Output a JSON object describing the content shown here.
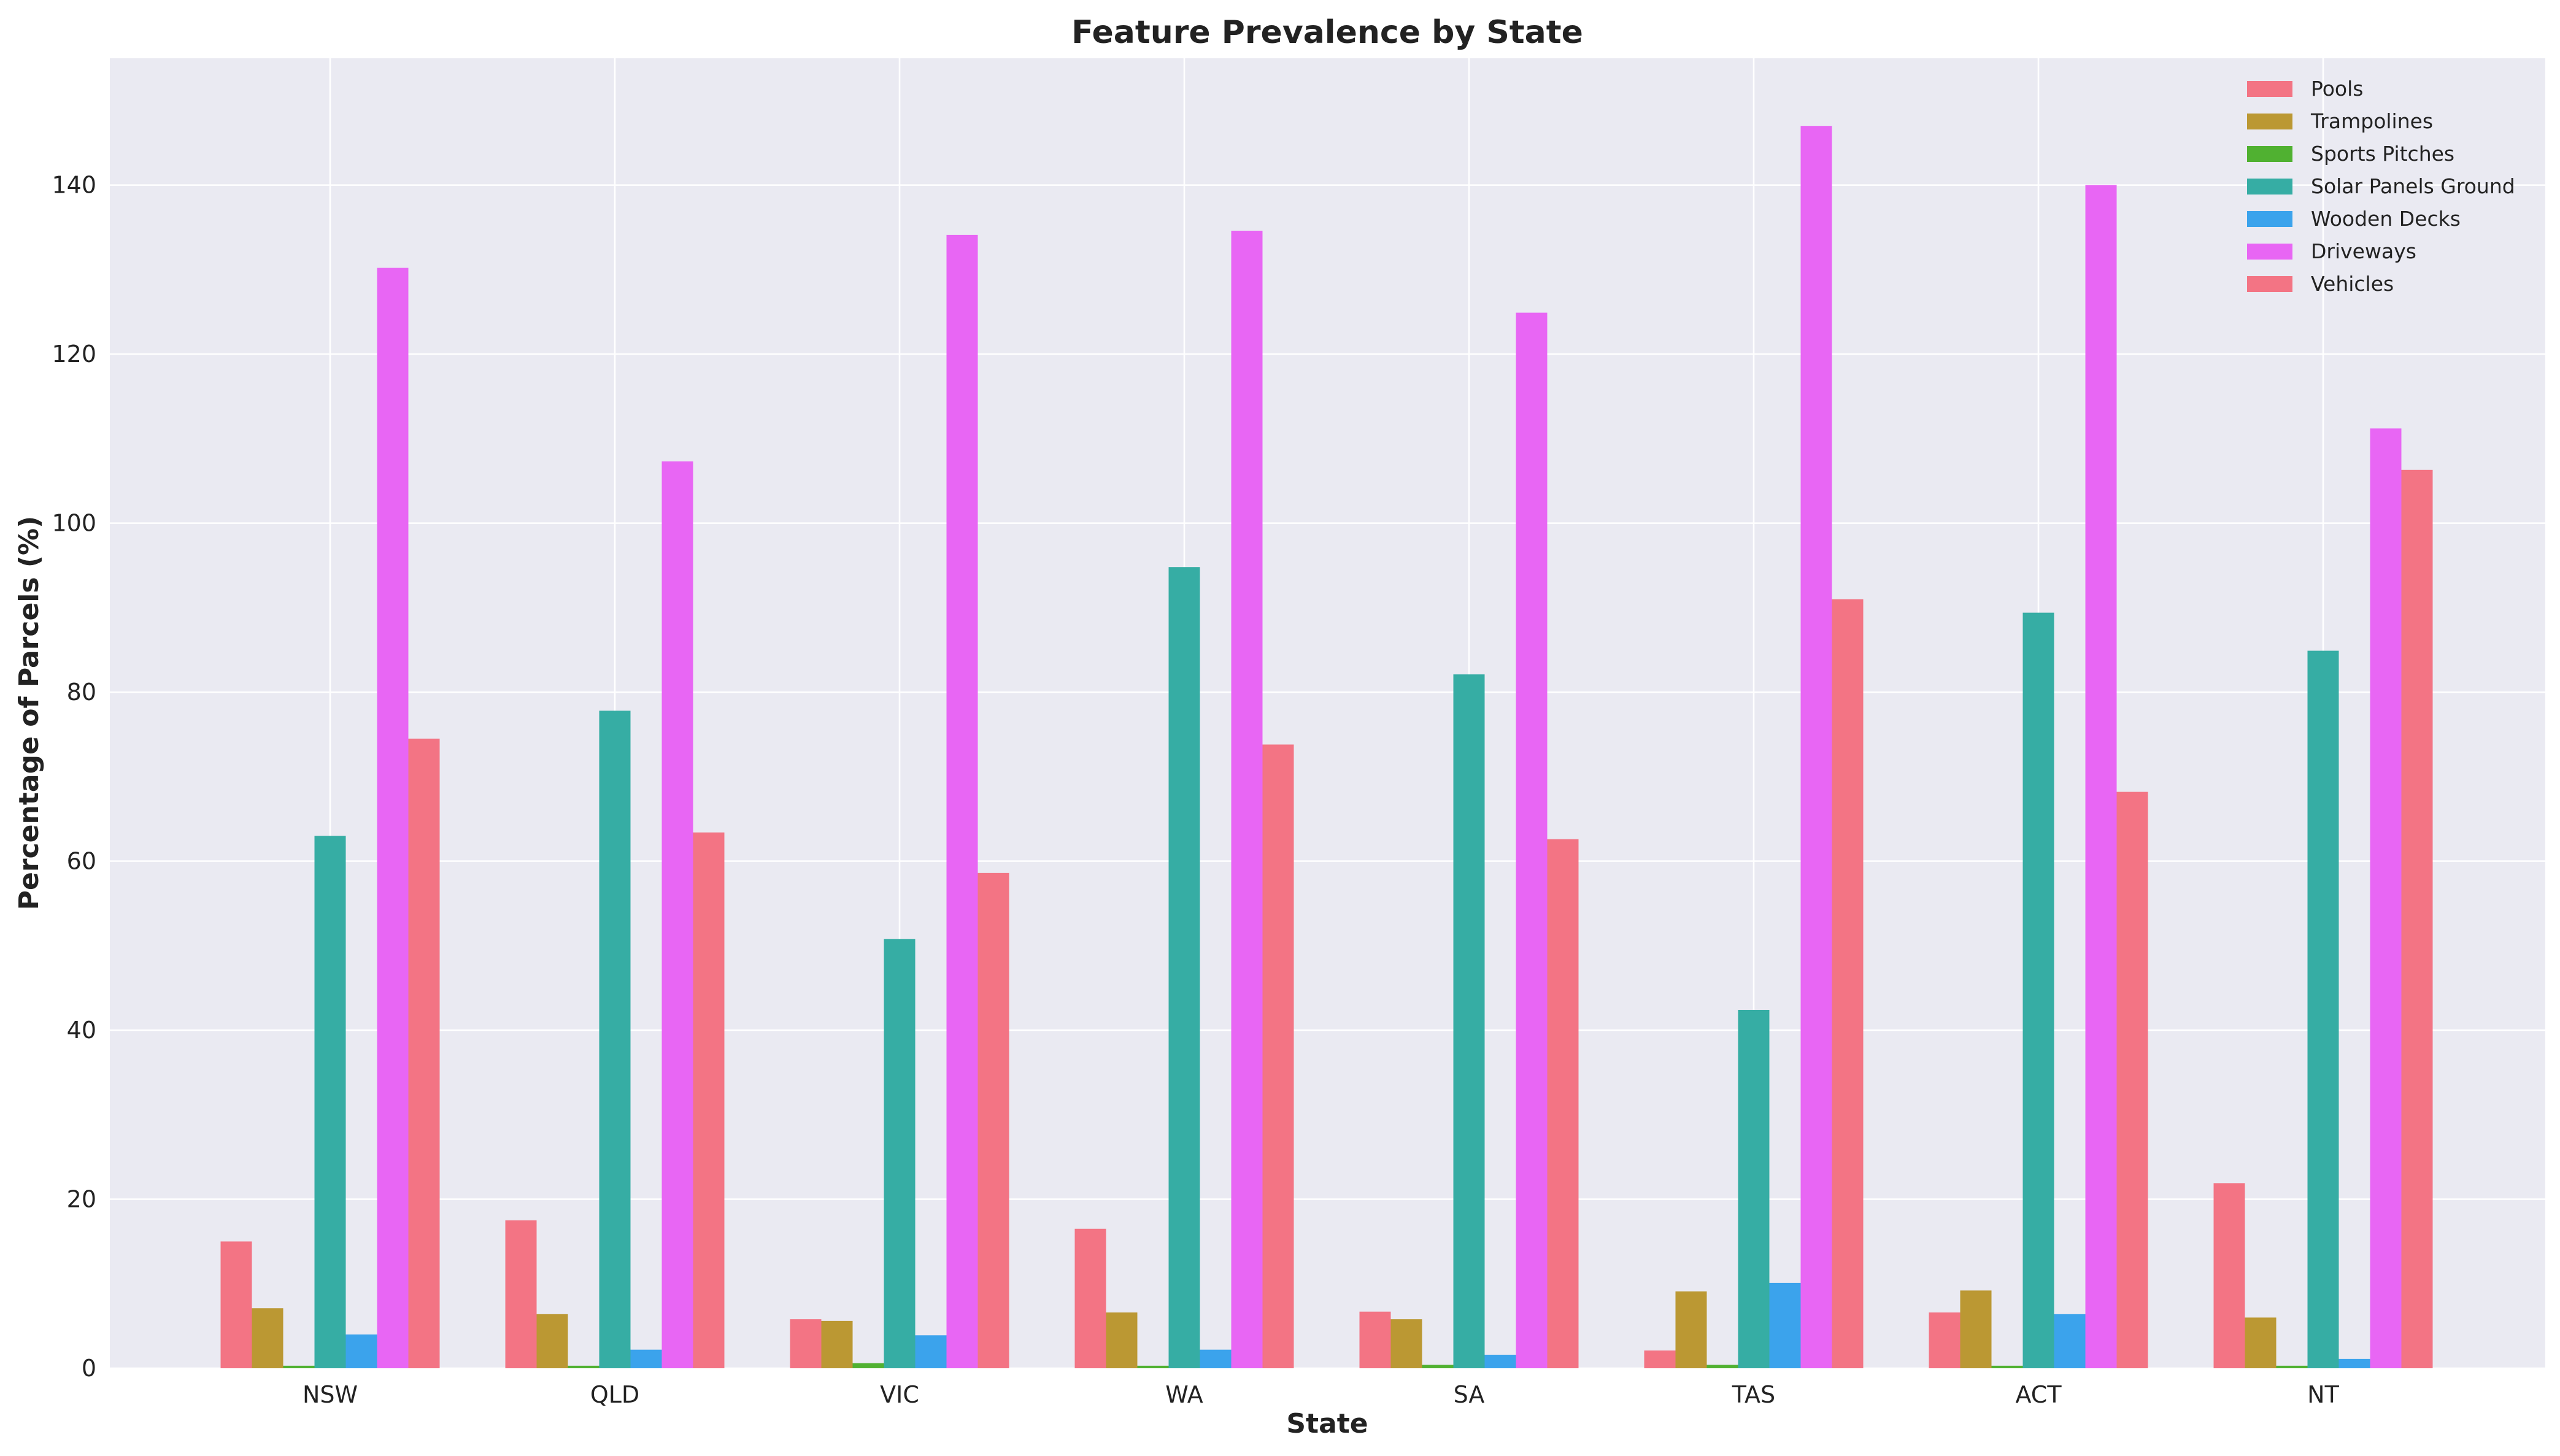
{
  "chart_data": {
    "type": "bar",
    "title": "Feature Prevalence by State",
    "xlabel": "State",
    "ylabel": "Percentage of Parcels (%)",
    "categories": [
      "NSW",
      "QLD",
      "VIC",
      "WA",
      "SA",
      "TAS",
      "ACT",
      "NT"
    ],
    "ylim": [
      0,
      155
    ],
    "yticks": [
      0,
      20,
      40,
      60,
      80,
      100,
      120,
      140
    ],
    "grid": true,
    "legend_position": "top-right",
    "series": [
      {
        "name": "Pools",
        "color": "#f37484",
        "values": [
          15.0,
          17.5,
          5.8,
          16.5,
          6.7,
          2.1,
          6.6,
          21.9
        ]
      },
      {
        "name": "Trampolines",
        "color": "#bb9833",
        "values": [
          7.1,
          6.4,
          5.6,
          6.6,
          5.8,
          9.1,
          9.2,
          6.0
        ]
      },
      {
        "name": "Sports Pitches",
        "color": "#50b131",
        "values": [
          0.3,
          0.3,
          0.6,
          0.3,
          0.4,
          0.4,
          0.3,
          0.3
        ]
      },
      {
        "name": "Solar Panels Ground",
        "color": "#36ada4",
        "values": [
          63.0,
          77.8,
          50.8,
          94.8,
          82.1,
          42.4,
          89.4,
          84.9
        ]
      },
      {
        "name": "Wooden Decks",
        "color": "#3ba3ec",
        "values": [
          4.0,
          2.2,
          3.9,
          2.2,
          1.6,
          10.1,
          6.4,
          1.1
        ]
      },
      {
        "name": "Driveways",
        "color": "#e866f4",
        "values": [
          130.2,
          107.3,
          134.1,
          134.6,
          124.9,
          147.0,
          140.0,
          111.2
        ]
      },
      {
        "name": "Vehicles",
        "color": "#f37484",
        "values": [
          74.5,
          63.4,
          58.6,
          73.8,
          62.6,
          91.0,
          68.2,
          106.3
        ]
      }
    ]
  }
}
